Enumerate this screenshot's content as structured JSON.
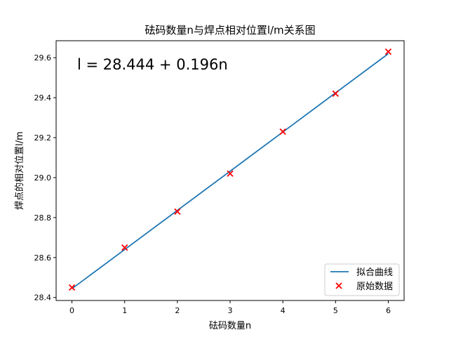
{
  "chart_data": {
    "type": "line",
    "title": "砝码数量n与焊点相对位置l/m关系图",
    "xlabel": "砝码数量n",
    "ylabel": "焊点的相对位置l/m",
    "annotation": "l = 28.444 + 0.196n",
    "xlim": [
      -0.3,
      6.3
    ],
    "ylim": [
      28.385,
      29.685
    ],
    "x_ticks": [
      0,
      1,
      2,
      3,
      4,
      5,
      6
    ],
    "y_ticks": [
      28.4,
      28.6,
      28.8,
      29.0,
      29.2,
      29.4,
      29.6
    ],
    "y_tick_labels": [
      "28.4",
      "28.6",
      "28.8",
      "29.0",
      "29.2",
      "29.4",
      "29.6"
    ],
    "grid": false,
    "legend_position": "lower-right",
    "series": [
      {
        "name": "拟合曲线",
        "kind": "line",
        "color": "#1f77b4",
        "x": [
          0,
          1,
          2,
          3,
          4,
          5,
          6
        ],
        "y": [
          28.444,
          28.64,
          28.836,
          29.032,
          29.228,
          29.424,
          29.62
        ]
      },
      {
        "name": "原始数据",
        "kind": "scatter",
        "marker": "x",
        "color": "#ff0000",
        "x": [
          0,
          1,
          2,
          3,
          4,
          5,
          6
        ],
        "y": [
          28.45,
          28.65,
          28.83,
          29.02,
          29.23,
          29.42,
          29.63
        ]
      }
    ]
  }
}
